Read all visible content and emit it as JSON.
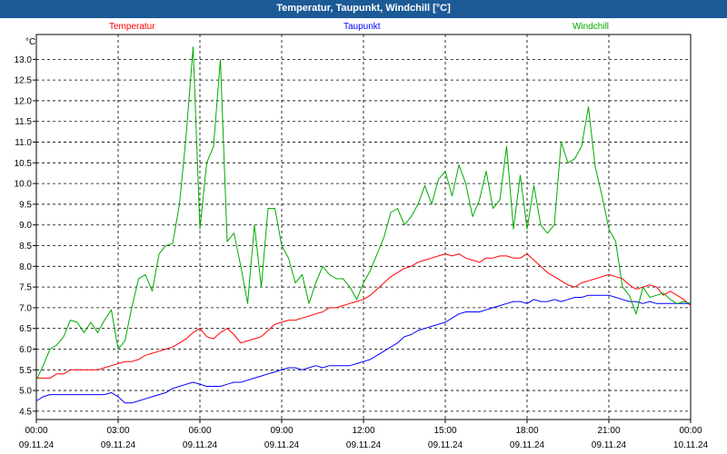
{
  "window": {
    "title": "Temperatur, Taupunkt, Windchill [°C]"
  },
  "chart_data": {
    "type": "line",
    "ylabel": "°C",
    "ylim": [
      4.3,
      13.6
    ],
    "xlim": [
      0,
      24
    ],
    "grid": true,
    "legend_placement": "top",
    "y_ticks": [
      "13.0",
      "12.5",
      "12.0",
      "11.5",
      "11.0",
      "10.5",
      "10.0",
      "9.5",
      "9.0",
      "8.5",
      "8.0",
      "7.5",
      "7.0",
      "6.5",
      "6.0",
      "5.5",
      "5.0",
      "4.5"
    ],
    "x_tick_positions": [
      0,
      3,
      6,
      9,
      12,
      15,
      18,
      21,
      24
    ],
    "x_tick_times": [
      "00:00",
      "03:00",
      "06:00",
      "09:00",
      "12:00",
      "15:00",
      "18:00",
      "21:00",
      "00:00"
    ],
    "x_tick_dates": [
      "09.11.24",
      "09.11.24",
      "09.11.24",
      "09.11.24",
      "09.11.24",
      "09.11.24",
      "09.11.24",
      "09.11.24",
      "10.11.24"
    ],
    "series": [
      {
        "name": "Temperatur",
        "color": "#ff0000",
        "x": [
          0,
          0.25,
          0.5,
          0.75,
          1,
          1.25,
          1.5,
          1.75,
          2,
          2.25,
          2.5,
          2.75,
          3,
          3.25,
          3.5,
          3.75,
          4,
          4.25,
          4.5,
          4.75,
          5,
          5.25,
          5.5,
          5.75,
          6,
          6.25,
          6.5,
          6.75,
          7,
          7.25,
          7.5,
          7.75,
          8,
          8.25,
          8.5,
          8.75,
          9,
          9.25,
          9.5,
          9.75,
          10,
          10.25,
          10.5,
          10.75,
          11,
          11.25,
          11.5,
          11.75,
          12,
          12.25,
          12.5,
          12.75,
          13,
          13.25,
          13.5,
          13.75,
          14,
          14.25,
          14.5,
          14.75,
          15,
          15.25,
          15.5,
          15.75,
          16,
          16.25,
          16.5,
          16.75,
          17,
          17.25,
          17.5,
          17.75,
          18,
          18.25,
          18.5,
          18.75,
          19,
          19.25,
          19.5,
          19.75,
          20,
          20.25,
          20.5,
          20.75,
          21,
          21.25,
          21.5,
          21.75,
          22,
          22.25,
          22.5,
          22.75,
          23,
          23.25,
          23.5,
          23.75,
          24
        ],
        "y": [
          5.3,
          5.3,
          5.3,
          5.4,
          5.4,
          5.5,
          5.5,
          5.5,
          5.5,
          5.5,
          5.55,
          5.6,
          5.65,
          5.7,
          5.7,
          5.75,
          5.85,
          5.9,
          5.95,
          6.0,
          6.05,
          6.15,
          6.25,
          6.4,
          6.5,
          6.3,
          6.25,
          6.4,
          6.5,
          6.35,
          6.15,
          6.2,
          6.25,
          6.3,
          6.45,
          6.6,
          6.65,
          6.7,
          6.7,
          6.75,
          6.8,
          6.85,
          6.9,
          7.0,
          7.0,
          7.05,
          7.1,
          7.15,
          7.2,
          7.3,
          7.45,
          7.6,
          7.75,
          7.85,
          7.95,
          8.0,
          8.1,
          8.15,
          8.2,
          8.25,
          8.3,
          8.25,
          8.3,
          8.2,
          8.15,
          8.1,
          8.2,
          8.2,
          8.25,
          8.25,
          8.2,
          8.2,
          8.3,
          8.15,
          8.0,
          7.85,
          7.75,
          7.65,
          7.55,
          7.5,
          7.6,
          7.65,
          7.7,
          7.75,
          7.8,
          7.75,
          7.7,
          7.55,
          7.45,
          7.5,
          7.55,
          7.5,
          7.3,
          7.4,
          7.3,
          7.2,
          7.05
        ]
      },
      {
        "name": "Taupunkt",
        "color": "#0000ff",
        "x": [
          0,
          0.25,
          0.5,
          0.75,
          1,
          1.25,
          1.5,
          1.75,
          2,
          2.25,
          2.5,
          2.75,
          3,
          3.25,
          3.5,
          3.75,
          4,
          4.25,
          4.5,
          4.75,
          5,
          5.25,
          5.5,
          5.75,
          6,
          6.25,
          6.5,
          6.75,
          7,
          7.25,
          7.5,
          7.75,
          8,
          8.25,
          8.5,
          8.75,
          9,
          9.25,
          9.5,
          9.75,
          10,
          10.25,
          10.5,
          10.75,
          11,
          11.25,
          11.5,
          11.75,
          12,
          12.25,
          12.5,
          12.75,
          13,
          13.25,
          13.5,
          13.75,
          14,
          14.25,
          14.5,
          14.75,
          15,
          15.25,
          15.5,
          15.75,
          16,
          16.25,
          16.5,
          16.75,
          17,
          17.25,
          17.5,
          17.75,
          18,
          18.25,
          18.5,
          18.75,
          19,
          19.25,
          19.5,
          19.75,
          20,
          20.25,
          20.5,
          20.75,
          21,
          21.25,
          21.5,
          21.75,
          22,
          22.25,
          22.5,
          22.75,
          23,
          23.25,
          23.5,
          23.75,
          24
        ],
        "y": [
          4.75,
          4.85,
          4.9,
          4.9,
          4.9,
          4.9,
          4.9,
          4.9,
          4.9,
          4.9,
          4.9,
          4.95,
          4.85,
          4.7,
          4.7,
          4.75,
          4.8,
          4.85,
          4.9,
          4.95,
          5.05,
          5.1,
          5.15,
          5.2,
          5.15,
          5.1,
          5.1,
          5.1,
          5.15,
          5.2,
          5.2,
          5.25,
          5.3,
          5.35,
          5.4,
          5.45,
          5.5,
          5.55,
          5.55,
          5.5,
          5.55,
          5.6,
          5.55,
          5.6,
          5.6,
          5.6,
          5.6,
          5.65,
          5.7,
          5.75,
          5.85,
          5.95,
          6.05,
          6.15,
          6.3,
          6.35,
          6.45,
          6.5,
          6.55,
          6.6,
          6.65,
          6.75,
          6.85,
          6.9,
          6.9,
          6.9,
          6.95,
          7.0,
          7.05,
          7.1,
          7.15,
          7.15,
          7.1,
          7.2,
          7.15,
          7.15,
          7.2,
          7.15,
          7.2,
          7.25,
          7.25,
          7.3,
          7.3,
          7.3,
          7.3,
          7.25,
          7.2,
          7.15,
          7.15,
          7.1,
          7.15,
          7.1,
          7.1,
          7.1,
          7.1,
          7.1,
          7.1
        ]
      },
      {
        "name": "Windchill",
        "color": "#00aa00",
        "x": [
          0,
          0.25,
          0.5,
          0.75,
          1,
          1.25,
          1.5,
          1.75,
          2,
          2.25,
          2.5,
          2.75,
          3,
          3.25,
          3.5,
          3.75,
          4,
          4.25,
          4.5,
          4.75,
          5,
          5.25,
          5.5,
          5.75,
          6,
          6.25,
          6.5,
          6.75,
          7,
          7.25,
          7.5,
          7.75,
          8,
          8.25,
          8.5,
          8.75,
          9,
          9.25,
          9.5,
          9.75,
          10,
          10.25,
          10.5,
          10.75,
          11,
          11.25,
          11.5,
          11.75,
          12,
          12.25,
          12.5,
          12.75,
          13,
          13.25,
          13.5,
          13.75,
          14,
          14.25,
          14.5,
          14.75,
          15,
          15.25,
          15.5,
          15.75,
          16,
          16.25,
          16.5,
          16.75,
          17,
          17.25,
          17.5,
          17.75,
          18,
          18.25,
          18.5,
          18.75,
          19,
          19.25,
          19.5,
          19.75,
          20,
          20.25,
          20.5,
          20.75,
          21,
          21.25,
          21.5,
          21.75,
          22,
          22.25,
          22.5,
          22.75,
          23,
          23.25,
          23.5,
          23.75,
          24
        ],
        "y": [
          5.25,
          5.6,
          6.0,
          6.1,
          6.3,
          6.7,
          6.65,
          6.4,
          6.65,
          6.4,
          6.7,
          6.95,
          6.0,
          6.2,
          7.0,
          7.7,
          7.8,
          7.4,
          8.3,
          8.5,
          8.55,
          9.5,
          11.2,
          13.3,
          8.9,
          10.5,
          10.9,
          13.0,
          8.6,
          8.8,
          8.0,
          7.1,
          9.0,
          7.5,
          9.4,
          9.4,
          8.5,
          8.2,
          7.6,
          7.8,
          7.1,
          7.6,
          8.0,
          7.8,
          7.7,
          7.7,
          7.5,
          7.2,
          7.6,
          7.9,
          8.3,
          8.7,
          9.3,
          9.4,
          9.0,
          9.2,
          9.5,
          9.95,
          9.5,
          10.1,
          10.3,
          9.7,
          10.45,
          10.0,
          9.2,
          9.6,
          10.3,
          9.4,
          9.6,
          10.9,
          8.9,
          10.2,
          8.9,
          9.95,
          9.0,
          8.8,
          9.0,
          11.0,
          10.5,
          10.6,
          10.9,
          11.85,
          10.4,
          9.7,
          8.9,
          8.6,
          7.5,
          7.3,
          6.85,
          7.5,
          7.25,
          7.3,
          7.35,
          7.2,
          7.1,
          7.15,
          7.1
        ]
      }
    ]
  }
}
